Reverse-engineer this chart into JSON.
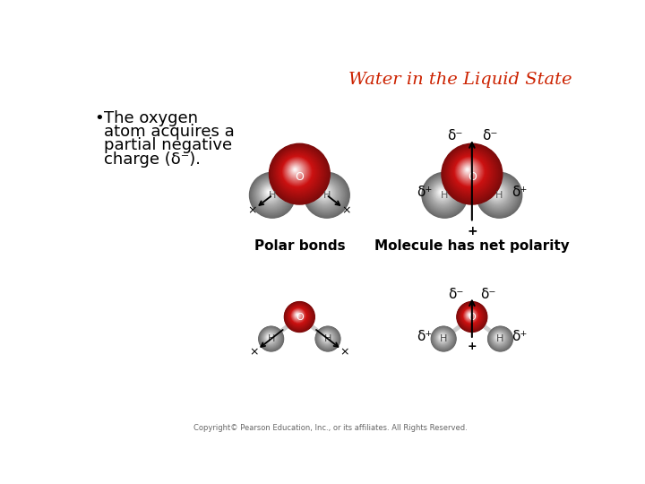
{
  "title": "Water in the Liquid State",
  "title_color": "#CC2200",
  "title_fontsize": 14,
  "background_color": "#FFFFFF",
  "bullet_text_lines": [
    "The oxygen",
    "atom acquires a",
    "partial negative",
    "charge (δ⁻)."
  ],
  "bullet_fontsize": 13,
  "label_polar_bonds": "Polar bonds",
  "label_net_polarity": "Molecule has net polarity",
  "copyright": "Copyright© Pearson Education, Inc., or its affiliates. All Rights Reserved.",
  "delta_minus": "δ⁻",
  "delta_plus": "δ⁺",
  "oxygen_red": "#CC1111",
  "oxygen_red_dark": "#990000",
  "oxygen_red_light": "#FF4444",
  "hydrogen_gray": "#AAAAAA",
  "hydrogen_gray_dark": "#777777",
  "hydrogen_gray_light": "#DDDDDD",
  "arrow_color": "#111111"
}
